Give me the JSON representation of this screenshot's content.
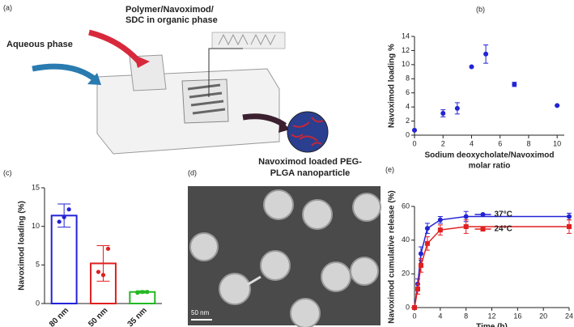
{
  "panels": [
    "(a)",
    "(b)",
    "(c)",
    "(d)",
    "(e)"
  ],
  "diagram": {
    "organic_phase": [
      "Polymer/Navoximod/",
      "SDC in organic phase"
    ],
    "aqueous_phase": "Aqueous phase",
    "product": [
      "Navoximod loaded PEG-",
      "PLGA nanoparticle"
    ]
  },
  "micrograph": {
    "scale_bar": "50 nm"
  },
  "chart_data": [
    {
      "type": "scatter",
      "ylabel": "Navoximod loading %",
      "xlabel": [
        "Sodium deoxycholate/Navoximod",
        "molar ratio"
      ],
      "x": [
        0,
        2,
        3,
        4,
        5,
        7,
        10
      ],
      "values": [
        0.7,
        3.1,
        3.8,
        9.7,
        11.5,
        7.2,
        4.2
      ],
      "errors": [
        0,
        0.5,
        0.8,
        0,
        1.3,
        0.3,
        0
      ],
      "color": "#2323d6",
      "xlim": [
        0,
        10.5
      ],
      "ylim": [
        0,
        14
      ],
      "xticks": [
        0,
        2,
        4,
        6,
        8,
        10
      ],
      "yticks": [
        0,
        2,
        4,
        6,
        8,
        10,
        12,
        14
      ]
    },
    {
      "type": "bar",
      "ylabel": "Navoximod loading (%)",
      "categories": [
        "80 nm",
        "50 nm",
        "35 nm"
      ],
      "values": [
        11.4,
        5.2,
        1.5
      ],
      "errors": [
        1.5,
        2.3,
        0.15
      ],
      "points": [
        [
          10.6,
          11.2,
          12.2
        ],
        [
          4.1,
          3.7,
          7.1
        ],
        [
          1.4,
          1.5,
          1.5
        ]
      ],
      "colors": [
        "#2323d6",
        "#e02020",
        "#22b822"
      ],
      "ylim": [
        0,
        15
      ],
      "yticks": [
        0,
        5,
        10,
        15
      ]
    },
    {
      "type": "line",
      "ylabel": "Navoximod cumulative release (%)",
      "xlabel": "Time (h)",
      "x": [
        0,
        0.5,
        1,
        2,
        4,
        8,
        24
      ],
      "series": [
        {
          "name": "37°C",
          "color": "#2323d6",
          "values": [
            0,
            14,
            32,
            47,
            52,
            54,
            54
          ],
          "errors": [
            0,
            3,
            4,
            3,
            2,
            3,
            2
          ]
        },
        {
          "name": "24°C",
          "color": "#e02020",
          "values": [
            0,
            11,
            25,
            38,
            46,
            48,
            48
          ],
          "errors": [
            0,
            3,
            4,
            4,
            3,
            4,
            4
          ]
        }
      ],
      "xlim": [
        0,
        24
      ],
      "ylim": [
        0,
        60
      ],
      "xticks": [
        0,
        4,
        8,
        12,
        16,
        20,
        24
      ],
      "yticks": [
        0,
        20,
        40,
        60
      ],
      "legend": "upper center"
    }
  ]
}
